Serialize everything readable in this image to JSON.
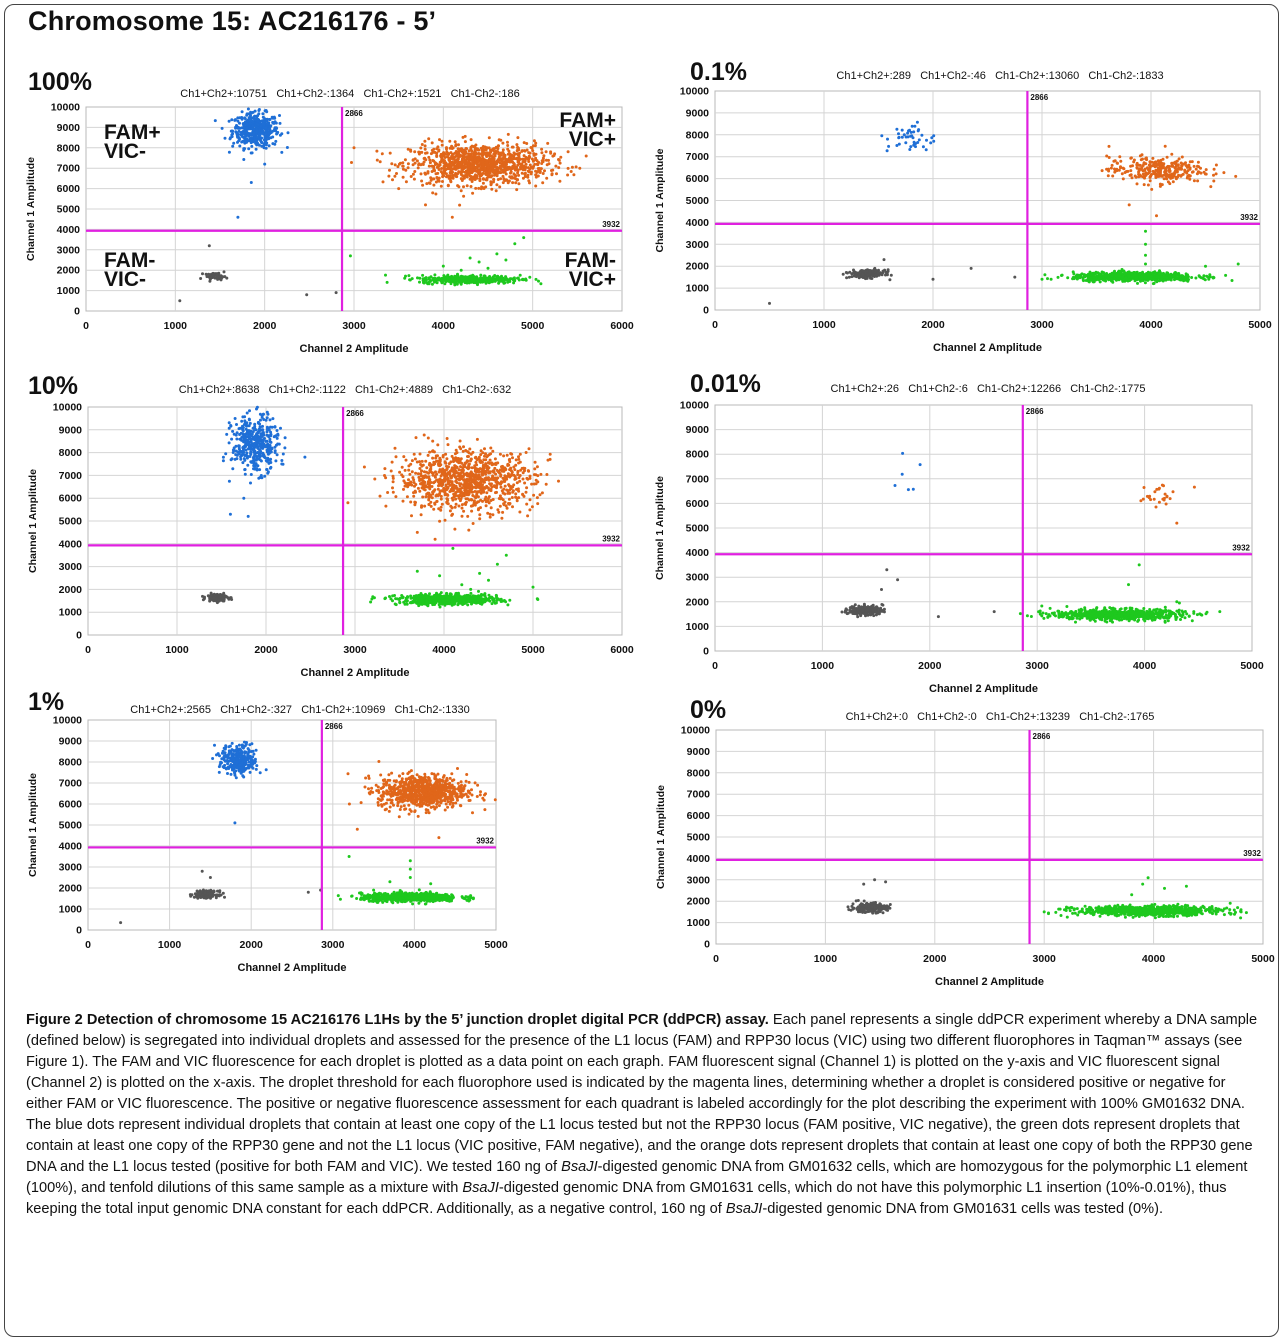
{
  "figure": {
    "title": "Chromosome 15: AC216176 - 5’",
    "caption_title": "Figure 2 Detection of chromosome 15 AC216176 L1Hs by the 5’ junction droplet digital PCR (ddPCR) assay.",
    "caption_parts": [
      {
        "text": " Each panel represents a single ddPCR experiment whereby a DNA sample (defined below) is segregated into individual droplets and assessed for the presence of the L1 locus (FAM) and RPP30 locus (VIC) using two different fluorophores in Taqman™ assays (see Figure 1). The FAM and VIC fluorescence for each droplet is plotted as a data point on each graph. FAM fluorescent signal (Channel 1) is plotted on the y-axis and VIC fluorescent signal (Channel 2) is plotted on the x-axis. The droplet threshold for each fluorophore used is indicated by the magenta lines, determining whether a droplet is considered positive or negative for either FAM or VIC fluorescence. The positive or negative fluorescence assessment for each quadrant is labeled accordingly for the plot describing the experiment with 100% GM01632 DNA. The blue dots represent individual droplets that contain at least one copy of the L1 locus tested but not the RPP30 locus (FAM positive, VIC negative), the green dots represent droplets that contain at least one copy of the RPP30 gene and not the L1 locus (VIC positive, FAM negative), and the orange dots represent droplets that contain at least one copy of both the RPP30 gene DNA and the L1 locus tested (positive for both FAM and VIC). We tested 160 ng of ",
        "italic": false
      },
      {
        "text": "BsaJI",
        "italic": true
      },
      {
        "text": "-digested genomic DNA from GM01632 cells, which are homozygous for the polymorphic L1 element (100%), and tenfold dilutions of this same sample as a mixture with ",
        "italic": false
      },
      {
        "text": "BsaJI",
        "italic": true
      },
      {
        "text": "-digested genomic DNA from GM01631 cells, which do not have this polymorphic L1 insertion (10%-0.01%), thus keeping the total input genomic DNA constant for each ddPCR. Additionally, as a negative control, 160 ng of ",
        "italic": false
      },
      {
        "text": "BsaJI",
        "italic": true
      },
      {
        "text": "-digested genomic DNA from GM01631 cells was tested (0%).",
        "italic": false
      }
    ]
  },
  "colors": {
    "blue": "#1f6fd6",
    "orange": "#e0661a",
    "green": "#1ec81e",
    "gray": "#555555",
    "threshold": "#e020e0",
    "grid": "#d4d4d4"
  },
  "chart_data": [
    {
      "type": "scatter",
      "panel_label": "100%",
      "counts": "Ch1+Ch2+:10751   Ch1+Ch2-:1364   Ch1-Ch2+:1521   Ch1-Ch2-:186",
      "xlabel": "Channel 2 Amplitude",
      "ylabel": "Channel 1 Amplitude",
      "xlim": [
        0,
        6000
      ],
      "ylim": [
        0,
        10000
      ],
      "xticks": [
        "0",
        "1000",
        "2000",
        "3000",
        "4000",
        "5000",
        "6000"
      ],
      "yticks": [
        "0",
        "1000",
        "2000",
        "3000",
        "4000",
        "5000",
        "6000",
        "7000",
        "8000",
        "9000",
        "10000"
      ],
      "threshold_x": 2866,
      "threshold_y": 3932,
      "threshold_x_label": "2866",
      "threshold_y_label": "3932",
      "quadrant_labels": {
        "top_left": [
          "FAM+",
          "VIC-"
        ],
        "top_right": [
          "FAM+",
          "VIC+"
        ],
        "bottom_left": [
          "FAM-",
          "VIC-"
        ],
        "bottom_right": [
          "FAM-",
          "VIC+"
        ]
      },
      "clusters": [
        {
          "color": "blue",
          "cx": 1900,
          "cy": 8850,
          "sx": 130,
          "sy": 420,
          "n": 450
        },
        {
          "color": "orange",
          "cx": 4400,
          "cy": 7200,
          "sx": 380,
          "sy": 500,
          "n": 1100
        },
        {
          "color": "green",
          "cx": 4300,
          "cy": 1550,
          "sx": 280,
          "sy": 100,
          "n": 420
        },
        {
          "color": "gray",
          "cx": 1450,
          "cy": 1700,
          "sx": 60,
          "sy": 80,
          "n": 50
        }
      ],
      "outliers": [
        {
          "color": "green",
          "points": [
            [
              4200,
              2000
            ],
            [
              4400,
              2400
            ],
            [
              4600,
              2800
            ],
            [
              4800,
              3300
            ],
            [
              4500,
              2100
            ],
            [
              4700,
              2500
            ],
            [
              4300,
              2600
            ],
            [
              4900,
              3600
            ],
            [
              2960,
              2700
            ],
            [
              4000,
              2200
            ]
          ]
        },
        {
          "color": "blue",
          "points": [
            [
              1700,
              4600
            ],
            [
              1850,
              6300
            ],
            [
              2000,
              7200
            ]
          ]
        },
        {
          "color": "gray",
          "points": [
            [
              1050,
              500
            ],
            [
              2470,
              800
            ],
            [
              1380,
              3200
            ],
            [
              2800,
              900
            ]
          ]
        },
        {
          "color": "orange",
          "points": [
            [
              3000,
              8000
            ],
            [
              3500,
              6000
            ],
            [
              3800,
              5200
            ],
            [
              4100,
              4600
            ]
          ]
        }
      ]
    },
    {
      "type": "scatter",
      "panel_label": "0.1%",
      "counts": "Ch1+Ch2+:289   Ch1+Ch2-:46   Ch1-Ch2+:13060   Ch1-Ch2-:1833",
      "xlabel": "Channel 2 Amplitude",
      "ylabel": "Channel 1 Amplitude",
      "xlim": [
        0,
        5000
      ],
      "ylim": [
        0,
        10000
      ],
      "xticks": [
        "0",
        "1000",
        "2000",
        "3000",
        "4000",
        "5000"
      ],
      "yticks": [
        "0",
        "1000",
        "2000",
        "3000",
        "4000",
        "5000",
        "6000",
        "7000",
        "8000",
        "9000",
        "10000"
      ],
      "threshold_x": 2866,
      "threshold_y": 3932,
      "threshold_x_label": "2866",
      "threshold_y_label": "3932",
      "clusters": [
        {
          "color": "blue",
          "cx": 1800,
          "cy": 7850,
          "sx": 110,
          "sy": 350,
          "n": 46
        },
        {
          "color": "orange",
          "cx": 4050,
          "cy": 6400,
          "sx": 220,
          "sy": 300,
          "n": 290
        },
        {
          "color": "green",
          "cx": 3850,
          "cy": 1520,
          "sx": 280,
          "sy": 100,
          "n": 700
        },
        {
          "color": "gray",
          "cx": 1400,
          "cy": 1650,
          "sx": 80,
          "sy": 90,
          "n": 200
        }
      ],
      "outliers": [
        {
          "color": "green",
          "points": [
            [
              3950,
              2500
            ],
            [
              3950,
              3000
            ],
            [
              3950,
              3600
            ],
            [
              3950,
              2100
            ],
            [
              4500,
              2000
            ],
            [
              3000,
              1400
            ],
            [
              4800,
              2100
            ]
          ]
        },
        {
          "color": "gray",
          "points": [
            [
              500,
              300
            ],
            [
              2000,
              1400
            ],
            [
              2350,
              1900
            ],
            [
              2750,
              1500
            ],
            [
              1550,
              2300
            ]
          ]
        },
        {
          "color": "orange",
          "points": [
            [
              4050,
              4300
            ],
            [
              3800,
              4800
            ]
          ]
        }
      ]
    },
    {
      "type": "scatter",
      "panel_label": "10%",
      "counts": "Ch1+Ch2+:8638   Ch1+Ch2-:1122   Ch1-Ch2+:4889   Ch1-Ch2-:632",
      "xlabel": "Channel 2 Amplitude",
      "ylabel": "Channel 1 Amplitude",
      "xlim": [
        0,
        6000
      ],
      "ylim": [
        0,
        10000
      ],
      "xticks": [
        "0",
        "1000",
        "2000",
        "3000",
        "4000",
        "5000",
        "6000"
      ],
      "yticks": [
        "0",
        "1000",
        "2000",
        "3000",
        "4000",
        "5000",
        "6000",
        "7000",
        "8000",
        "9000",
        "10000"
      ],
      "threshold_x": 2866,
      "threshold_y": 3932,
      "threshold_x_label": "2866",
      "threshold_y_label": "3932",
      "clusters": [
        {
          "color": "blue",
          "cx": 1880,
          "cy": 8350,
          "sx": 130,
          "sy": 600,
          "n": 420
        },
        {
          "color": "orange",
          "cx": 4250,
          "cy": 6800,
          "sx": 380,
          "sy": 650,
          "n": 1000
        },
        {
          "color": "green",
          "cx": 4050,
          "cy": 1550,
          "sx": 280,
          "sy": 110,
          "n": 650
        },
        {
          "color": "gray",
          "cx": 1450,
          "cy": 1650,
          "sx": 60,
          "sy": 80,
          "n": 130
        }
      ],
      "outliers": [
        {
          "color": "green",
          "points": [
            [
              4200,
              2200
            ],
            [
              4400,
              2700
            ],
            [
              4600,
              3100
            ],
            [
              4700,
              3500
            ],
            [
              4100,
              3800
            ],
            [
              4500,
              2400
            ],
            [
              3700,
              2800
            ],
            [
              5000,
              2100
            ],
            [
              4300,
              2000
            ],
            [
              3950,
              2600
            ]
          ]
        },
        {
          "color": "blue",
          "points": [
            [
              1600,
              5300
            ],
            [
              1800,
              5200
            ],
            [
              1750,
              6000
            ]
          ]
        },
        {
          "color": "orange",
          "points": [
            [
              2920,
              5800
            ],
            [
              3700,
              4500
            ],
            [
              3900,
              4200
            ]
          ]
        }
      ]
    },
    {
      "type": "scatter",
      "panel_label": "0.01%",
      "counts": "Ch1+Ch2+:26   Ch1+Ch2-:6   Ch1-Ch2+:12266   Ch1-Ch2-:1775",
      "xlabel": "Channel 2 Amplitude",
      "ylabel": "Channel 1 Amplitude",
      "xlim": [
        0,
        5000
      ],
      "ylim": [
        0,
        10000
      ],
      "xticks": [
        "0",
        "1000",
        "2000",
        "3000",
        "4000",
        "5000"
      ],
      "yticks": [
        "0",
        "1000",
        "2000",
        "3000",
        "4000",
        "5000",
        "6000",
        "7000",
        "8000",
        "9000",
        "10000"
      ],
      "threshold_x": 2866,
      "threshold_y": 3932,
      "threshold_x_label": "2866",
      "threshold_y_label": "3932",
      "clusters": [
        {
          "color": "blue",
          "cx": 1800,
          "cy": 7400,
          "sx": 70,
          "sy": 500,
          "n": 6
        },
        {
          "color": "orange",
          "cx": 4100,
          "cy": 6300,
          "sx": 110,
          "sy": 300,
          "n": 26
        },
        {
          "color": "green",
          "cx": 3750,
          "cy": 1480,
          "sx": 300,
          "sy": 110,
          "n": 700
        },
        {
          "color": "gray",
          "cx": 1400,
          "cy": 1650,
          "sx": 80,
          "sy": 100,
          "n": 200
        }
      ],
      "outliers": [
        {
          "color": "green",
          "points": [
            [
              3950,
              3500
            ],
            [
              3850,
              2700
            ],
            [
              4700,
              1600
            ],
            [
              3100,
              1400
            ],
            [
              4300,
              2000
            ]
          ]
        },
        {
          "color": "gray",
          "points": [
            [
              1600,
              3300
            ],
            [
              1700,
              2900
            ],
            [
              2080,
              1400
            ],
            [
              2600,
              1600
            ],
            [
              1550,
              2500
            ]
          ]
        },
        {
          "color": "orange",
          "points": [
            [
              4300,
              5200
            ]
          ]
        }
      ]
    },
    {
      "type": "scatter",
      "panel_label": "1%",
      "counts": "Ch1+Ch2+:2565   Ch1+Ch2-:327   Ch1-Ch2+:10969   Ch1-Ch2-:1330",
      "xlabel": "Channel 2 Amplitude",
      "ylabel": "Channel 1 Amplitude",
      "xlim": [
        0,
        5000
      ],
      "ylim": [
        0,
        10000
      ],
      "xticks": [
        "0",
        "1000",
        "2000",
        "3000",
        "4000",
        "5000"
      ],
      "yticks": [
        "0",
        "1000",
        "2000",
        "3000",
        "4000",
        "5000",
        "6000",
        "7000",
        "8000",
        "9000",
        "10000"
      ],
      "threshold_x": 2866,
      "threshold_y": 3932,
      "threshold_x_label": "2866",
      "threshold_y_label": "3932",
      "clusters": [
        {
          "color": "blue",
          "cx": 1850,
          "cy": 8100,
          "sx": 110,
          "sy": 350,
          "n": 300
        },
        {
          "color": "orange",
          "cx": 4100,
          "cy": 6600,
          "sx": 270,
          "sy": 400,
          "n": 800
        },
        {
          "color": "green",
          "cx": 3950,
          "cy": 1550,
          "sx": 300,
          "sy": 100,
          "n": 700
        },
        {
          "color": "gray",
          "cx": 1450,
          "cy": 1700,
          "sx": 70,
          "sy": 80,
          "n": 180
        }
      ],
      "outliers": [
        {
          "color": "green",
          "points": [
            [
              3950,
              2500
            ],
            [
              3950,
              2900
            ],
            [
              3950,
              3300
            ],
            [
              3200,
              3500
            ],
            [
              4200,
              2200
            ],
            [
              3700,
              2300
            ],
            [
              3500,
              1900
            ]
          ]
        },
        {
          "color": "gray",
          "points": [
            [
              400,
              350
            ],
            [
              2700,
              1800
            ],
            [
              2850,
              1900
            ],
            [
              1400,
              2800
            ],
            [
              1500,
              2500
            ]
          ]
        },
        {
          "color": "orange",
          "points": [
            [
              3300,
              4800
            ],
            [
              3700,
              6200
            ],
            [
              4300,
              4400
            ]
          ]
        },
        {
          "color": "blue",
          "points": [
            [
              1800,
              5100
            ],
            [
              1550,
              8800
            ]
          ]
        }
      ]
    },
    {
      "type": "scatter",
      "panel_label": "0%",
      "counts": "Ch1+Ch2+:0   Ch1+Ch2-:0   Ch1-Ch2+:13239   Ch1-Ch2-:1765",
      "xlabel": "Channel 2 Amplitude",
      "ylabel": "Channel 1 Amplitude",
      "xlim": [
        0,
        5000
      ],
      "ylim": [
        0,
        10000
      ],
      "xticks": [
        "0",
        "1000",
        "2000",
        "3000",
        "4000",
        "5000"
      ],
      "yticks": [
        "0",
        "1000",
        "2000",
        "3000",
        "4000",
        "5000",
        "6000",
        "7000",
        "8000",
        "9000",
        "10000"
      ],
      "threshold_x": 2866,
      "threshold_y": 3932,
      "threshold_x_label": "2866",
      "threshold_y_label": "3932",
      "clusters": [
        {
          "color": "green",
          "cx": 3950,
          "cy": 1550,
          "sx": 330,
          "sy": 110,
          "n": 800
        },
        {
          "color": "gray",
          "cx": 1400,
          "cy": 1700,
          "sx": 80,
          "sy": 110,
          "n": 220
        }
      ],
      "outliers": [
        {
          "color": "green",
          "points": [
            [
              3950,
              3100
            ],
            [
              3900,
              2800
            ],
            [
              4100,
              2600
            ],
            [
              3800,
              2300
            ],
            [
              4300,
              2700
            ],
            [
              3000,
              1500
            ],
            [
              4700,
              1900
            ],
            [
              4800,
              1500
            ]
          ]
        },
        {
          "color": "gray",
          "points": [
            [
              1450,
              3000
            ],
            [
              1350,
              2800
            ],
            [
              1550,
              2900
            ]
          ]
        }
      ]
    }
  ]
}
